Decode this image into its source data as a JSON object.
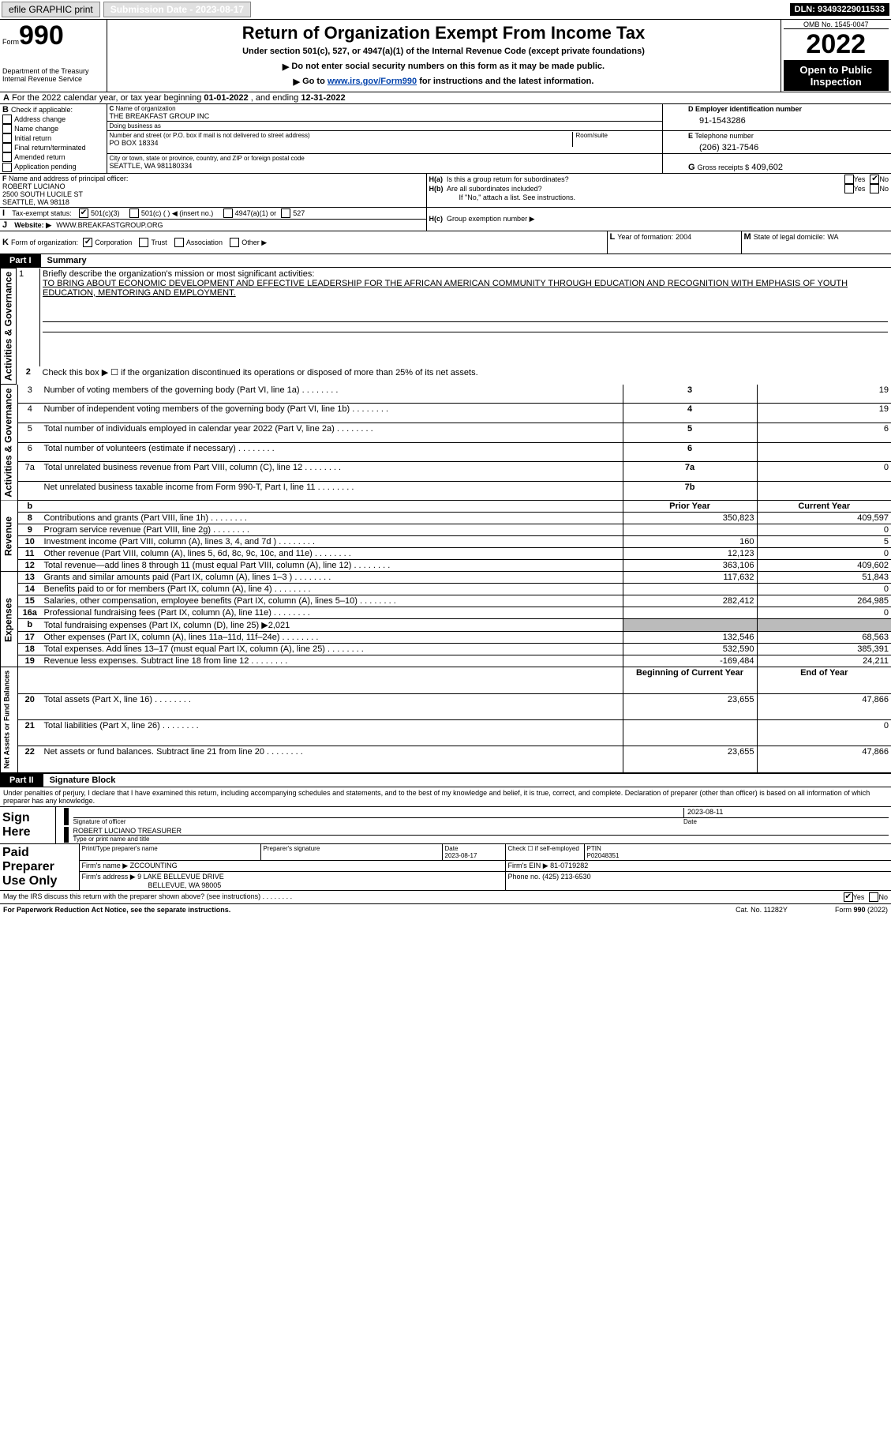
{
  "topbar": {
    "efile_label": "efile GRAPHIC print",
    "submission_label": "Submission Date - 2023-08-17",
    "dln_label": "DLN: 93493229011533"
  },
  "header": {
    "form_label_prefix": "Form",
    "form_number": "990",
    "title": "Return of Organization Exempt From Income Tax",
    "subtitle": "Under section 501(c), 527, or 4947(a)(1) of the Internal Revenue Code (except private foundations)",
    "note1": "Do not enter social security numbers on this form as it may be made public.",
    "note2_prefix": "Go to ",
    "note2_link": "www.irs.gov/Form990",
    "note2_suffix": " for instructions and the latest information.",
    "dept": "Department of the Treasury",
    "irs": "Internal Revenue Service",
    "omb": "OMB No. 1545-0047",
    "year": "2022",
    "open": "Open to Public Inspection"
  },
  "periodA": {
    "prefix": "For the 2022 calendar year, or tax year beginning ",
    "begin": "01-01-2022",
    "mid": " , and ending ",
    "end": "12-31-2022"
  },
  "boxB": {
    "title": "Check if applicable:",
    "opt1": "Address change",
    "opt2": "Name change",
    "opt3": "Initial return",
    "opt4": "Final return/terminated",
    "opt5": "Amended return",
    "opt6": "Application pending"
  },
  "boxC": {
    "label": "Name of organization",
    "name": "THE BREAKFAST GROUP INC",
    "dba_label": "Doing business as",
    "dba": "",
    "street_label": "Number and street (or P.O. box if mail is not delivered to street address)",
    "room_label": "Room/suite",
    "street": "PO BOX 18334",
    "city_label": "City or town, state or province, country, and ZIP or foreign postal code",
    "city": "SEATTLE, WA  981180334"
  },
  "boxD": {
    "label": "Employer identification number",
    "value": "91-1543286"
  },
  "boxE": {
    "label": "Telephone number",
    "value": "(206) 321-7546"
  },
  "boxG": {
    "label": "Gross receipts $",
    "value": "409,602"
  },
  "boxF": {
    "label": "Name and address of principal officer:",
    "name": "ROBERT LUCIANO",
    "addr1": "2500 SOUTH LUCILE ST",
    "addr2": "SEATTLE, WA  98118"
  },
  "boxH": {
    "a": "Is this a group return for subordinates?",
    "b": "Are all subordinates included?",
    "note": "If \"No,\" attach a list. See instructions.",
    "c_prefix": "Group exemption number ▶",
    "yes": "Yes",
    "no": "No"
  },
  "boxI": {
    "label": "Tax-exempt status:",
    "o1": "501(c)(3)",
    "o2_prefix": "501(c) (   ) ◀ (insert no.)",
    "o3": "4947(a)(1) or",
    "o4": "527"
  },
  "boxJ": {
    "label": "Website: ▶",
    "value": "WWW.BREAKFASTGROUP.ORG"
  },
  "boxK": {
    "label": "Form of organization:",
    "o1": "Corporation",
    "o2": "Trust",
    "o3": "Association",
    "o4": "Other ▶"
  },
  "boxL": {
    "label": "Year of formation:",
    "value": "2004"
  },
  "boxM": {
    "label": "State of legal domicile:",
    "value": "WA"
  },
  "part1": {
    "label": "Part I",
    "title": "Summary"
  },
  "summary_sections": {
    "activities": "Activities & Governance",
    "revenue": "Revenue",
    "expenses": "Expenses",
    "netassets": "Net Assets or Fund Balances"
  },
  "s1": {
    "num": "1",
    "label": "Briefly describe the organization's mission or most significant activities:",
    "text": "TO BRING ABOUT ECONOMIC DEVELOPMENT AND EFFECTIVE LEADERSHIP FOR THE AFRICAN AMERICAN COMMUNITY THROUGH EDUCATION AND RECOGNITION WITH EMPHASIS OF YOUTH EDUCATION, MENTORING AND EMPLOYMENT."
  },
  "s2": {
    "num": "2",
    "label": "Check this box ▶ ☐ if the organization discontinued its operations or disposed of more than 25% of its net assets."
  },
  "col_prior": "Prior Year",
  "col_current": "Current Year",
  "col_begin": "Beginning of Current Year",
  "col_end": "End of Year",
  "rows": [
    {
      "num": "3",
      "label": "Number of voting members of the governing body (Part VI, line 1a)",
      "box": "3",
      "v": "19"
    },
    {
      "num": "4",
      "label": "Number of independent voting members of the governing body (Part VI, line 1b)",
      "box": "4",
      "v": "19"
    },
    {
      "num": "5",
      "label": "Total number of individuals employed in calendar year 2022 (Part V, line 2a)",
      "box": "5",
      "v": "6"
    },
    {
      "num": "6",
      "label": "Total number of volunteers (estimate if necessary)",
      "box": "6",
      "v": ""
    },
    {
      "num": "7a",
      "label": "Total unrelated business revenue from Part VIII, column (C), line 12",
      "box": "7a",
      "v": "0"
    },
    {
      "num": "",
      "label": "Net unrelated business taxable income from Form 990-T, Part I, line 11",
      "box": "7b",
      "v": ""
    }
  ],
  "rev": [
    {
      "num": "8",
      "label": "Contributions and grants (Part VIII, line 1h)",
      "p": "350,823",
      "c": "409,597"
    },
    {
      "num": "9",
      "label": "Program service revenue (Part VIII, line 2g)",
      "p": "",
      "c": "0"
    },
    {
      "num": "10",
      "label": "Investment income (Part VIII, column (A), lines 3, 4, and 7d )",
      "p": "160",
      "c": "5"
    },
    {
      "num": "11",
      "label": "Other revenue (Part VIII, column (A), lines 5, 6d, 8c, 9c, 10c, and 11e)",
      "p": "12,123",
      "c": "0"
    },
    {
      "num": "12",
      "label": "Total revenue—add lines 8 through 11 (must equal Part VIII, column (A), line 12)",
      "p": "363,106",
      "c": "409,602"
    }
  ],
  "exp": [
    {
      "num": "13",
      "label": "Grants and similar amounts paid (Part IX, column (A), lines 1–3 )",
      "p": "117,632",
      "c": "51,843"
    },
    {
      "num": "14",
      "label": "Benefits paid to or for members (Part IX, column (A), line 4)",
      "p": "",
      "c": "0"
    },
    {
      "num": "15",
      "label": "Salaries, other compensation, employee benefits (Part IX, column (A), lines 5–10)",
      "p": "282,412",
      "c": "264,985"
    },
    {
      "num": "16a",
      "label": "Professional fundraising fees (Part IX, column (A), line 11e)",
      "p": "",
      "c": "0"
    },
    {
      "num": "b",
      "label": "Total fundraising expenses (Part IX, column (D), line 25) ▶2,021",
      "p": "SHADE",
      "c": "SHADE"
    },
    {
      "num": "17",
      "label": "Other expenses (Part IX, column (A), lines 11a–11d, 11f–24e)",
      "p": "132,546",
      "c": "68,563"
    },
    {
      "num": "18",
      "label": "Total expenses. Add lines 13–17 (must equal Part IX, column (A), line 25)",
      "p": "532,590",
      "c": "385,391"
    },
    {
      "num": "19",
      "label": "Revenue less expenses. Subtract line 18 from line 12",
      "p": "-169,484",
      "c": "24,211"
    }
  ],
  "net": [
    {
      "num": "20",
      "label": "Total assets (Part X, line 16)",
      "p": "23,655",
      "c": "47,866"
    },
    {
      "num": "21",
      "label": "Total liabilities (Part X, line 26)",
      "p": "",
      "c": "0"
    },
    {
      "num": "22",
      "label": "Net assets or fund balances. Subtract line 21 from line 20",
      "p": "23,655",
      "c": "47,866"
    }
  ],
  "part2": {
    "label": "Part II",
    "title": "Signature Block"
  },
  "penalties": "Under penalties of perjury, I declare that I have examined this return, including accompanying schedules and statements, and to the best of my knowledge and belief, it is true, correct, and complete. Declaration of preparer (other than officer) is based on all information of which preparer has any knowledge.",
  "sign": {
    "label": "Sign Here",
    "sig_label": "Signature of officer",
    "date_label": "Date",
    "date": "2023-08-11",
    "name": "ROBERT LUCIANO  TREASURER",
    "name_label": "Type or print name and title"
  },
  "paid": {
    "label": "Paid Preparer Use Only",
    "c1": "Print/Type preparer's name",
    "c2": "Preparer's signature",
    "c3": "Date",
    "c3v": "2023-08-17",
    "c4": "Check ☐ if self-employed",
    "c5": "PTIN",
    "c5v": "P02048351",
    "firm_label": "Firm's name    ▶",
    "firm": "ZCCOUNTING",
    "ein_label": "Firm's EIN ▶",
    "ein": "81-0719282",
    "addr_label": "Firm's address ▶",
    "addr1": "9 LAKE BELLEVUE DRIVE",
    "addr2": "BELLEVUE, WA  98005",
    "phone_label": "Phone no.",
    "phone": "(425) 213-6530"
  },
  "discuss": {
    "label": "May the IRS discuss this return with the preparer shown above? (see instructions)",
    "yes": "Yes",
    "no": "No"
  },
  "footer": {
    "left": "For Paperwork Reduction Act Notice, see the separate instructions.",
    "mid": "Cat. No. 11282Y",
    "right": "Form 990 (2022)"
  },
  "row_b": "b"
}
